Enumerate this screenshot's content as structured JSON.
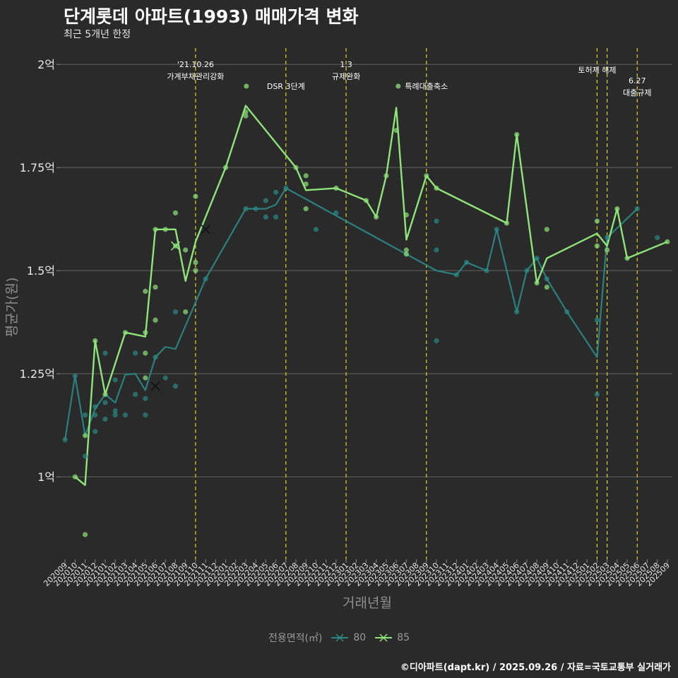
{
  "title": "단계롯데 아파트(1993) 매매가격 변화",
  "subtitle": "최근 5개년 한정",
  "caption": "©디아파트(dapt.kr) / 2025.09.26 / 자료=국토교통부 실거래가",
  "colors": {
    "background": "#2b2a2b",
    "grid": "#5c5c5c",
    "text": "#e6e6e6",
    "vline": "#d8d820",
    "s80": "#2a8a88",
    "s85": "#8ee47a"
  },
  "chart_data": {
    "type": "line",
    "xlabel": "거래년월",
    "ylabel": "평균가(원)",
    "y_ticks": [
      {
        "value": 1.0,
        "label": "1억"
      },
      {
        "value": 1.25,
        "label": "1.25억"
      },
      {
        "value": 1.5,
        "label": "1.5억"
      },
      {
        "value": 1.75,
        "label": "1.75억"
      },
      {
        "value": 2.0,
        "label": "2억"
      }
    ],
    "ylim": [
      0.8,
      2.05
    ],
    "categories": [
      "202009",
      "202010",
      "202011",
      "202012",
      "202101",
      "202102",
      "202103",
      "202104",
      "202105",
      "202106",
      "202107",
      "202108",
      "202109",
      "202110",
      "202111",
      "202112",
      "202201",
      "202202",
      "202203",
      "202204",
      "202205",
      "202206",
      "202207",
      "202208",
      "202209",
      "202210",
      "202211",
      "202212",
      "202301",
      "202302",
      "202303",
      "202304",
      "202305",
      "202306",
      "202307",
      "202308",
      "202309",
      "202310",
      "202311",
      "202312",
      "202401",
      "202402",
      "202403",
      "202404",
      "202405",
      "202406",
      "202407",
      "202408",
      "202409",
      "202410",
      "202411",
      "202412",
      "202501",
      "202502",
      "202503",
      "202504",
      "202505",
      "202506",
      "202507",
      "202508",
      "202509"
    ],
    "legend_title": "전용면적(㎡)",
    "series": [
      {
        "name": "80",
        "color": "#2a8a88",
        "line": [
          {
            "x": "202009",
            "y": 1.09
          },
          {
            "x": "202010",
            "y": 1.245
          },
          {
            "x": "202011",
            "y": 1.1
          },
          {
            "x": "202012",
            "y": 1.165
          },
          {
            "x": "202101",
            "y": 1.2
          },
          {
            "x": "202102",
            "y": 1.18
          },
          {
            "x": "202103",
            "y": 1.248
          },
          {
            "x": "202104",
            "y": 1.25
          },
          {
            "x": "202105",
            "y": 1.21
          },
          {
            "x": "202106",
            "y": 1.29
          },
          {
            "x": "202107",
            "y": 1.315
          },
          {
            "x": "202108",
            "y": 1.31
          },
          {
            "x": "202111",
            "y": 1.48
          },
          {
            "x": "202203",
            "y": 1.65
          },
          {
            "x": "202204",
            "y": 1.65
          },
          {
            "x": "202205",
            "y": 1.65
          },
          {
            "x": "202206",
            "y": 1.66
          },
          {
            "x": "202207",
            "y": 1.7
          },
          {
            "x": "202310",
            "y": 1.5
          },
          {
            "x": "202312",
            "y": 1.49
          },
          {
            "x": "202401",
            "y": 1.52
          },
          {
            "x": "202403",
            "y": 1.5
          },
          {
            "x": "202404",
            "y": 1.6
          },
          {
            "x": "202406",
            "y": 1.4
          },
          {
            "x": "202407",
            "y": 1.5
          },
          {
            "x": "202408",
            "y": 1.53
          },
          {
            "x": "202409",
            "y": 1.48
          },
          {
            "x": "202411",
            "y": 1.4
          },
          {
            "x": "202502",
            "y": 1.29
          },
          {
            "x": "202503",
            "y": 1.58
          },
          {
            "x": "202506",
            "y": 1.65
          }
        ],
        "points": [
          {
            "x": "202009",
            "y": 1.09
          },
          {
            "x": "202010",
            "y": 1.245
          },
          {
            "x": "202011",
            "y": 1.05
          },
          {
            "x": "202011",
            "y": 1.15
          },
          {
            "x": "202012",
            "y": 1.17
          },
          {
            "x": "202012",
            "y": 1.11
          },
          {
            "x": "202012",
            "y": 1.15
          },
          {
            "x": "202101",
            "y": 1.14
          },
          {
            "x": "202101",
            "y": 1.18
          },
          {
            "x": "202101",
            "y": 1.3
          },
          {
            "x": "202102",
            "y": 1.15
          },
          {
            "x": "202102",
            "y": 1.16
          },
          {
            "x": "202102",
            "y": 1.235
          },
          {
            "x": "202103",
            "y": 1.15
          },
          {
            "x": "202104",
            "y": 1.2
          },
          {
            "x": "202104",
            "y": 1.3
          },
          {
            "x": "202105",
            "y": 1.15
          },
          {
            "x": "202105",
            "y": 1.19
          },
          {
            "x": "202106",
            "y": 1.29
          },
          {
            "x": "202107",
            "y": 1.24
          },
          {
            "x": "202108",
            "y": 1.22
          },
          {
            "x": "202108",
            "y": 1.4
          },
          {
            "x": "202111",
            "y": 1.48
          },
          {
            "x": "202203",
            "y": 1.65
          },
          {
            "x": "202204",
            "y": 1.65
          },
          {
            "x": "202205",
            "y": 1.63
          },
          {
            "x": "202205",
            "y": 1.67
          },
          {
            "x": "202206",
            "y": 1.63
          },
          {
            "x": "202206",
            "y": 1.69
          },
          {
            "x": "202207",
            "y": 1.7
          },
          {
            "x": "202210",
            "y": 1.6
          },
          {
            "x": "202212",
            "y": 1.64
          },
          {
            "x": "202310",
            "y": 1.33
          },
          {
            "x": "202310",
            "y": 1.55
          },
          {
            "x": "202310",
            "y": 1.62
          },
          {
            "x": "202312",
            "y": 1.49
          },
          {
            "x": "202401",
            "y": 1.52
          },
          {
            "x": "202403",
            "y": 1.5
          },
          {
            "x": "202404",
            "y": 1.6
          },
          {
            "x": "202406",
            "y": 1.4
          },
          {
            "x": "202407",
            "y": 1.5
          },
          {
            "x": "202408",
            "y": 1.53
          },
          {
            "x": "202409",
            "y": 1.48
          },
          {
            "x": "202411",
            "y": 1.4
          },
          {
            "x": "202502",
            "y": 1.2
          },
          {
            "x": "202502",
            "y": 1.38
          },
          {
            "x": "202503",
            "y": 1.58
          },
          {
            "x": "202506",
            "y": 1.65
          },
          {
            "x": "202508",
            "y": 1.58
          }
        ],
        "markers": [
          {
            "x": "202106",
            "y": 1.22
          },
          {
            "x": "202111",
            "y": 1.6
          }
        ]
      },
      {
        "name": "85",
        "color": "#8ee47a",
        "line": [
          {
            "x": "202010",
            "y": 1.0
          },
          {
            "x": "202011",
            "y": 0.98
          },
          {
            "x": "202012",
            "y": 1.33
          },
          {
            "x": "202101",
            "y": 1.2
          },
          {
            "x": "202103",
            "y": 1.35
          },
          {
            "x": "202105",
            "y": 1.34
          },
          {
            "x": "202106",
            "y": 1.6
          },
          {
            "x": "202107",
            "y": 1.6
          },
          {
            "x": "202108",
            "y": 1.6
          },
          {
            "x": "202109",
            "y": 1.475
          },
          {
            "x": "202110",
            "y": 1.57
          },
          {
            "x": "202201",
            "y": 1.75
          },
          {
            "x": "202203",
            "y": 1.9
          },
          {
            "x": "202208",
            "y": 1.75
          },
          {
            "x": "202209",
            "y": 1.695
          },
          {
            "x": "202212",
            "y": 1.7
          },
          {
            "x": "202303",
            "y": 1.67
          },
          {
            "x": "202304",
            "y": 1.63
          },
          {
            "x": "202305",
            "y": 1.73
          },
          {
            "x": "202306",
            "y": 1.895
          },
          {
            "x": "202307",
            "y": 1.575
          },
          {
            "x": "202309",
            "y": 1.73
          },
          {
            "x": "202310",
            "y": 1.7
          },
          {
            "x": "202405",
            "y": 1.615
          },
          {
            "x": "202406",
            "y": 1.83
          },
          {
            "x": "202408",
            "y": 1.47
          },
          {
            "x": "202409",
            "y": 1.53
          },
          {
            "x": "202502",
            "y": 1.59
          },
          {
            "x": "202503",
            "y": 1.56
          },
          {
            "x": "202504",
            "y": 1.65
          },
          {
            "x": "202505",
            "y": 1.53
          },
          {
            "x": "202509",
            "y": 1.57
          }
        ],
        "points": [
          {
            "x": "202010",
            "y": 1.0
          },
          {
            "x": "202011",
            "y": 0.86
          },
          {
            "x": "202011",
            "y": 1.1
          },
          {
            "x": "202012",
            "y": 1.33
          },
          {
            "x": "202101",
            "y": 1.2
          },
          {
            "x": "202103",
            "y": 1.35
          },
          {
            "x": "202105",
            "y": 1.24
          },
          {
            "x": "202105",
            "y": 1.3
          },
          {
            "x": "202105",
            "y": 1.35
          },
          {
            "x": "202105",
            "y": 1.45
          },
          {
            "x": "202106",
            "y": 1.38
          },
          {
            "x": "202106",
            "y": 1.46
          },
          {
            "x": "202106",
            "y": 1.6
          },
          {
            "x": "202107",
            "y": 1.6
          },
          {
            "x": "202108",
            "y": 1.64
          },
          {
            "x": "202108",
            "y": 1.56
          },
          {
            "x": "202109",
            "y": 1.4
          },
          {
            "x": "202109",
            "y": 1.55
          },
          {
            "x": "202110",
            "y": 1.5
          },
          {
            "x": "202110",
            "y": 1.52
          },
          {
            "x": "202110",
            "y": 1.68
          },
          {
            "x": "202201",
            "y": 1.75
          },
          {
            "x": "202203",
            "y": 1.875
          },
          {
            "x": "202203",
            "y": 1.885
          },
          {
            "x": "202208",
            "y": 1.75
          },
          {
            "x": "202209",
            "y": 1.65
          },
          {
            "x": "202209",
            "y": 1.71
          },
          {
            "x": "202209",
            "y": 1.73
          },
          {
            "x": "202212",
            "y": 1.7
          },
          {
            "x": "202303",
            "y": 1.67
          },
          {
            "x": "202304",
            "y": 1.63
          },
          {
            "x": "202305",
            "y": 1.73
          },
          {
            "x": "202306",
            "y": 1.84
          },
          {
            "x": "202307",
            "y": 1.54
          },
          {
            "x": "202307",
            "y": 1.55
          },
          {
            "x": "202307",
            "y": 1.635
          },
          {
            "x": "202309",
            "y": 1.73
          },
          {
            "x": "202310",
            "y": 1.7
          },
          {
            "x": "202405",
            "y": 1.615
          },
          {
            "x": "202406",
            "y": 1.83
          },
          {
            "x": "202408",
            "y": 1.47
          },
          {
            "x": "202409",
            "y": 1.46
          },
          {
            "x": "202409",
            "y": 1.6
          },
          {
            "x": "202502",
            "y": 1.56
          },
          {
            "x": "202502",
            "y": 1.62
          },
          {
            "x": "202503",
            "y": 1.55
          },
          {
            "x": "202504",
            "y": 1.65
          },
          {
            "x": "202505",
            "y": 1.53
          },
          {
            "x": "202509",
            "y": 1.57
          }
        ],
        "markers": [
          {
            "x": "202108",
            "y": 1.56
          }
        ]
      }
    ],
    "events": [
      {
        "x": "202110",
        "lines": [
          "'21.10.26",
          "가계부채관리강화"
        ],
        "row": 0
      },
      {
        "x": "202207",
        "lines": [
          "DSR 3단계"
        ],
        "row": 1,
        "dot": true,
        "align": "right"
      },
      {
        "x": "202301",
        "lines": [
          "1.3",
          "규제완화"
        ],
        "row": 0
      },
      {
        "x": "202309",
        "lines": [
          "특례대출축소"
        ],
        "row": 1,
        "dot": true,
        "align": "left"
      },
      {
        "x": "202502",
        "lines": [
          "토허제 해제"
        ],
        "row": 0,
        "align": "left"
      },
      {
        "x": "202503",
        "lines": [],
        "row": 0
      },
      {
        "x": "202506",
        "lines": [
          "6.27",
          "대출규제"
        ],
        "row": 2
      }
    ]
  }
}
